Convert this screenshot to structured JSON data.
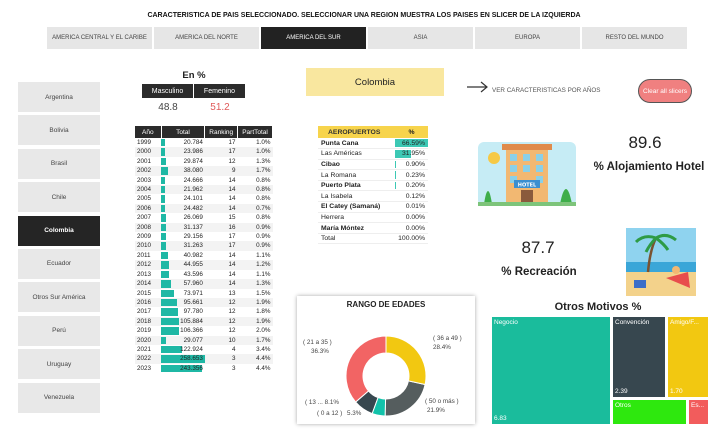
{
  "title": "CARACTERISTICA DE PAIS SELECCIONADO. SELECCIONAR UNA REGION MUESTRA LOS PAISES EN SLICER DE LA IZQUIERDA",
  "regions": [
    {
      "label": "AMERICA CENTRAL Y EL CARIBE"
    },
    {
      "label": "AMERICA DEL NORTE"
    },
    {
      "label": "AMERICA DEL SUR"
    },
    {
      "label": "ASIA"
    },
    {
      "label": "EUROPA"
    },
    {
      "label": "RESTO DEL MUNDO"
    }
  ],
  "selected_region": "AMERICA DEL SUR",
  "countries": [
    {
      "label": "Argentina"
    },
    {
      "label": "Bolivia"
    },
    {
      "label": "Brasil"
    },
    {
      "label": "Chile"
    },
    {
      "label": "Colombia"
    },
    {
      "label": "Ecuador"
    },
    {
      "label": "Otros Sur América"
    },
    {
      "label": "Perú"
    },
    {
      "label": "Uruguay"
    },
    {
      "label": "Venezuela"
    }
  ],
  "selected_country": "Colombia",
  "gender": {
    "title": "En %",
    "male_label": "Masculino",
    "female_label": "Femenino",
    "male_value": "48.8",
    "female_value": "51.2"
  },
  "year_table": {
    "headers": [
      "Año",
      "Total",
      "Ranking",
      "PartTotal"
    ],
    "rows": [
      {
        "year": "1999",
        "total": "20.784",
        "rank": "17",
        "part": "1.0%",
        "v": 20784
      },
      {
        "year": "2000",
        "total": "23.986",
        "rank": "17",
        "part": "1.0%",
        "v": 23986
      },
      {
        "year": "2001",
        "total": "29.874",
        "rank": "12",
        "part": "1.3%",
        "v": 29874
      },
      {
        "year": "2002",
        "total": "38.080",
        "rank": "9",
        "part": "1.7%",
        "v": 38080
      },
      {
        "year": "2003",
        "total": "24.666",
        "rank": "14",
        "part": "0.8%",
        "v": 24666
      },
      {
        "year": "2004",
        "total": "21.962",
        "rank": "14",
        "part": "0.8%",
        "v": 21962
      },
      {
        "year": "2005",
        "total": "24.101",
        "rank": "14",
        "part": "0.8%",
        "v": 24101
      },
      {
        "year": "2006",
        "total": "24.482",
        "rank": "14",
        "part": "0.7%",
        "v": 24482
      },
      {
        "year": "2007",
        "total": "26.069",
        "rank": "15",
        "part": "0.8%",
        "v": 26069
      },
      {
        "year": "2008",
        "total": "31.137",
        "rank": "16",
        "part": "0.9%",
        "v": 31137
      },
      {
        "year": "2009",
        "total": "29.156",
        "rank": "17",
        "part": "0.9%",
        "v": 29156
      },
      {
        "year": "2010",
        "total": "31.263",
        "rank": "17",
        "part": "0.9%",
        "v": 31263
      },
      {
        "year": "2011",
        "total": "40.982",
        "rank": "14",
        "part": "1.1%",
        "v": 40982
      },
      {
        "year": "2012",
        "total": "44.955",
        "rank": "14",
        "part": "1.2%",
        "v": 44955
      },
      {
        "year": "2013",
        "total": "43.596",
        "rank": "14",
        "part": "1.1%",
        "v": 43596
      },
      {
        "year": "2014",
        "total": "57.960",
        "rank": "14",
        "part": "1.3%",
        "v": 57960
      },
      {
        "year": "2015",
        "total": "73.971",
        "rank": "13",
        "part": "1.5%",
        "v": 73971
      },
      {
        "year": "2016",
        "total": "95.661",
        "rank": "12",
        "part": "1.9%",
        "v": 95661
      },
      {
        "year": "2017",
        "total": "97.780",
        "rank": "12",
        "part": "1.8%",
        "v": 97780
      },
      {
        "year": "2018",
        "total": "105.884",
        "rank": "12",
        "part": "1.9%",
        "v": 105884
      },
      {
        "year": "2019",
        "total": "106.366",
        "rank": "12",
        "part": "2.0%",
        "v": 106366
      },
      {
        "year": "2020",
        "total": "29.077",
        "rank": "10",
        "part": "1.7%",
        "v": 29077
      },
      {
        "year": "2021",
        "total": "122.924",
        "rank": "4",
        "part": "3.4%",
        "v": 122924
      },
      {
        "year": "2022",
        "total": "258.653",
        "rank": "3",
        "part": "4.4%",
        "v": 258653
      },
      {
        "year": "2023",
        "total": "243.356",
        "rank": "3",
        "part": "4.4%",
        "v": 243356
      }
    ]
  },
  "selected_country_card": "Colombia",
  "ver_caracteristicas": "VER CARACTERISTICAS POR AÑOS",
  "clear_label": "Clear all slicers",
  "airports": {
    "headers": [
      "AEROPUERTOS",
      "%"
    ],
    "rows": [
      {
        "name": "Punta Cana",
        "pct": "66.59%",
        "v": 66.59,
        "bold": true
      },
      {
        "name": "Las Américas",
        "pct": "31.95%",
        "v": 31.95,
        "bold": false
      },
      {
        "name": "Cibao",
        "pct": "0.90%",
        "v": 0.9,
        "bold": true
      },
      {
        "name": "La Romana",
        "pct": "0.23%",
        "v": 0.23,
        "bold": false
      },
      {
        "name": "Puerto Plata",
        "pct": "0.20%",
        "v": 0.2,
        "bold": true
      },
      {
        "name": "La Isabela",
        "pct": "0.12%",
        "v": 0.12,
        "bold": false
      },
      {
        "name": "El Catey (Samaná)",
        "pct": "0.01%",
        "v": 0.01,
        "bold": true
      },
      {
        "name": "Herrera",
        "pct": "0.00%",
        "v": 0,
        "bold": false
      },
      {
        "name": "María Móntez",
        "pct": "0.00%",
        "v": 0,
        "bold": true
      }
    ],
    "total_label": "Total",
    "total_value": "100.00%"
  },
  "kpi_alojamiento": {
    "value": "89.6",
    "label": "% Alojamiento Hotel"
  },
  "kpi_recreacion": {
    "value": "87.7",
    "label": "% Recreación"
  },
  "hotel_sign": "HOTEL",
  "age_chart": {
    "title": "RANGO DE EDADES",
    "slices": [
      {
        "label": "( 36 a 49 )",
        "pct": "28.4%",
        "v": 28.4,
        "color": "#f2c811"
      },
      {
        "label": "( 50 o más )",
        "pct": "21.9%",
        "v": 21.9,
        "color": "#555d5e"
      },
      {
        "label": "( 0 a 12 )",
        "pct": "5.3%",
        "v": 5.3,
        "color": "#12c2aa"
      },
      {
        "label": "( 13 ... 8.1%",
        "pct": "",
        "v": 8.1,
        "color": "#37474f"
      },
      {
        "label": "( 21 a 35 )",
        "pct": "36.3%",
        "v": 36.3,
        "color": "#f26464"
      }
    ]
  },
  "otros": {
    "title": "Otros Motivos %",
    "cells": [
      {
        "label": "Negocio",
        "value": "6.83",
        "color": "#1abc9c"
      },
      {
        "label": "Convención",
        "value": "2.39",
        "color": "#37474f"
      },
      {
        "label": "Amigo/F...",
        "value": "1.70",
        "color": "#f2c811"
      },
      {
        "label": "Otros",
        "value": "",
        "color": "#2ee80e"
      },
      {
        "label": "Es...",
        "value": "",
        "color": "#f25c5c"
      }
    ]
  },
  "chart_data": [
    {
      "type": "pie",
      "title": "RANGO DE EDADES",
      "categories": [
        "( 36 a 49 )",
        "( 50 o más )",
        "( 0 a 12 )",
        "( 13 ...",
        "( 21 a 35 )"
      ],
      "values": [
        28.4,
        21.9,
        5.3,
        8.1,
        36.3
      ]
    },
    {
      "type": "bar",
      "title": "Otros Motivos %",
      "categories": [
        "Negocio",
        "Convención",
        "Amigo/F...",
        "Otros",
        "Es..."
      ],
      "values": [
        6.83,
        2.39,
        1.7,
        null,
        null
      ]
    }
  ]
}
